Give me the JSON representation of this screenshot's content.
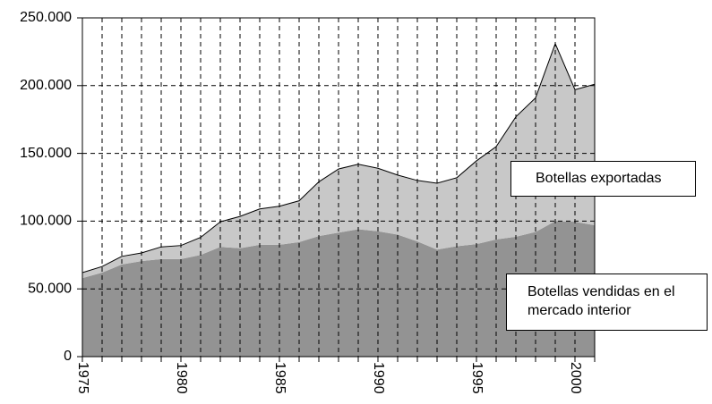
{
  "chart_data": {
    "type": "stacked_area",
    "x": [
      1975,
      1976,
      1977,
      1978,
      1979,
      1980,
      1981,
      1982,
      1983,
      1984,
      1985,
      1986,
      1987,
      1988,
      1989,
      1990,
      1991,
      1992,
      1993,
      1994,
      1995,
      1996,
      1997,
      1998,
      1999,
      2000,
      2001
    ],
    "xlim": [
      1975,
      2001
    ],
    "xticks": [
      1975,
      1980,
      1985,
      1990,
      1995,
      2000
    ],
    "ylim": [
      0,
      250000
    ],
    "yticks": [
      0,
      {
        "value": 50000,
        "label": "50.000"
      },
      {
        "value": 100000,
        "label": "100.000"
      },
      {
        "value": 150000,
        "label": "150.000"
      },
      {
        "value": 200000,
        "label": "200.000"
      },
      {
        "value": 250000,
        "label": "250.000"
      }
    ],
    "grid": true,
    "series": [
      {
        "name": "Botellas vendidas en el mercado interior",
        "color": "#939393",
        "values": [
          58000,
          62000,
          68000,
          70500,
          72000,
          72000,
          75000,
          81000,
          80000,
          82500,
          82500,
          84500,
          89000,
          91500,
          94000,
          92500,
          90000,
          85000,
          79000,
          81500,
          83000,
          86500,
          88500,
          92000,
          100000,
          99500,
          97000
        ]
      },
      {
        "name": "Botellas exportadas",
        "color": "#c8c8c8",
        "values": [
          4000,
          4500,
          6000,
          6000,
          9000,
          10000,
          13000,
          18500,
          23500,
          26500,
          28500,
          30500,
          40000,
          47000,
          48000,
          46500,
          44000,
          45000,
          49000,
          50500,
          61500,
          68500,
          88500,
          99000,
          131000,
          97500,
          104000
        ]
      }
    ]
  }
}
